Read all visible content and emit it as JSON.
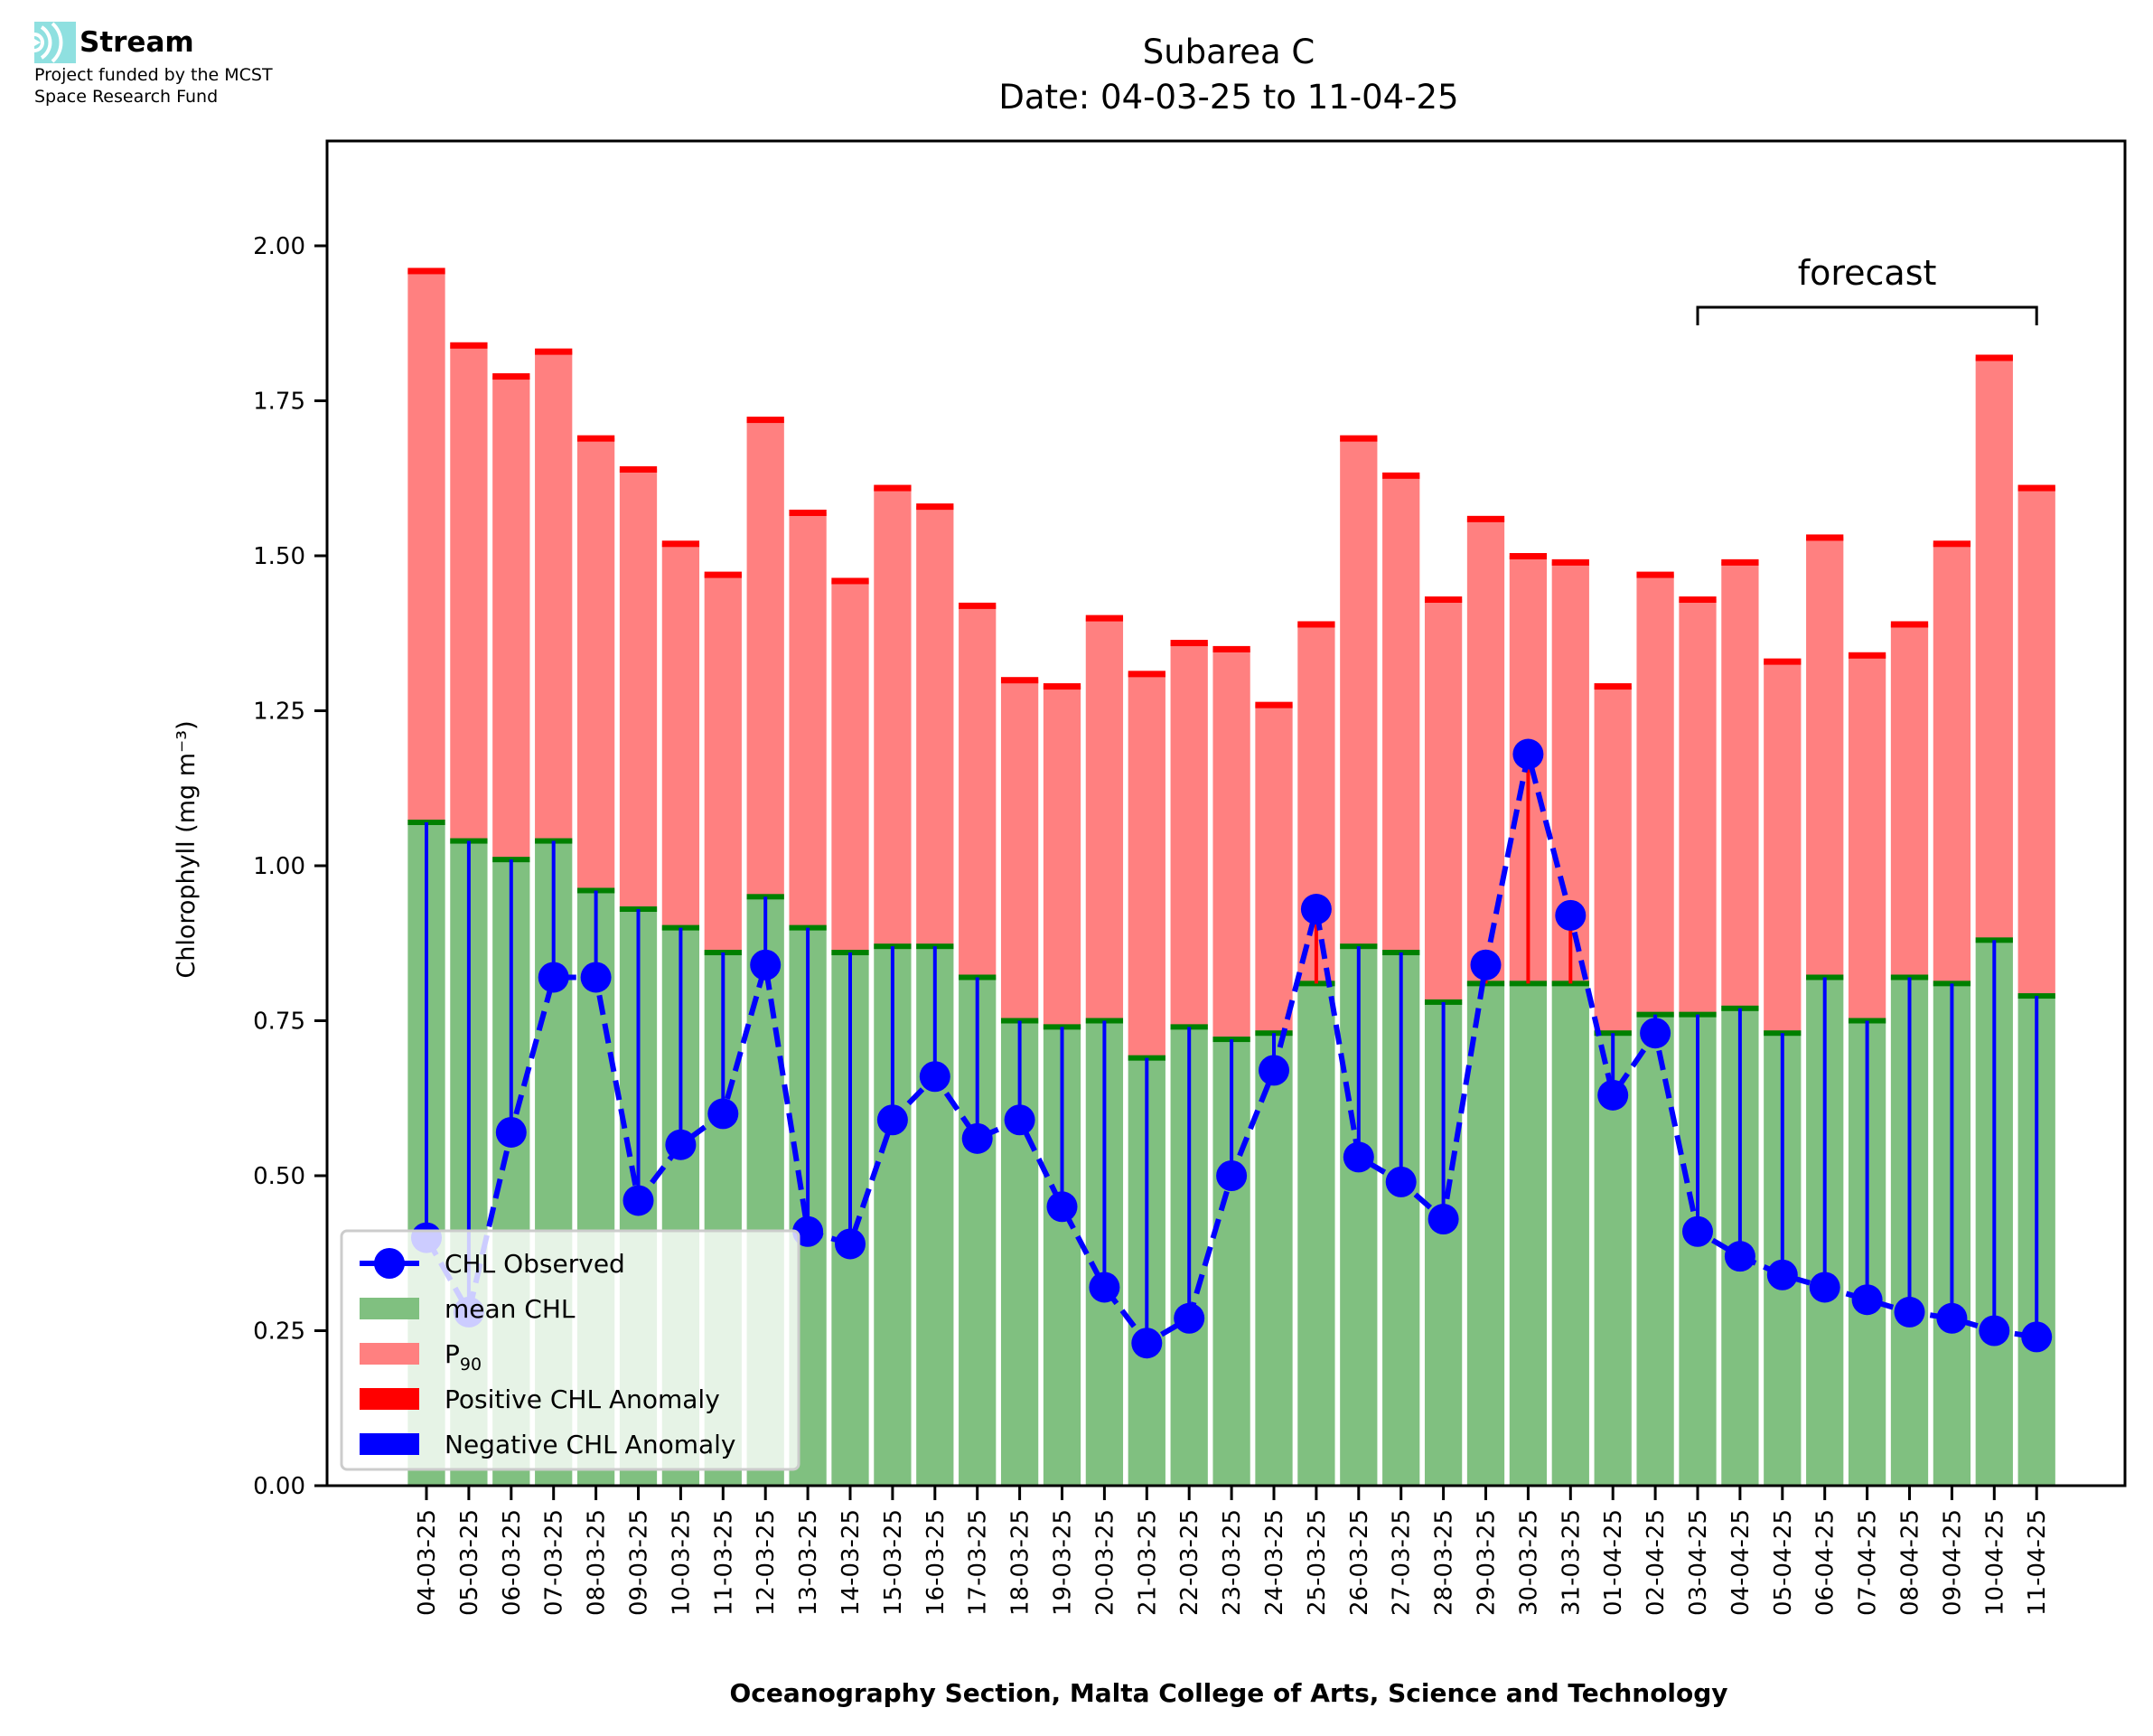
{
  "logo": {
    "name": "Stream",
    "fund_line1": "Project funded by the MCST",
    "fund_line2": "Space Research Fund",
    "accent": "#7fdcdc"
  },
  "chart_data": {
    "type": "bar",
    "title": "Subarea C",
    "subtitle": "Date: 04-03-25 to 11-04-25",
    "xlabel": "Oceanography Section, Malta College of Arts, Science and Technology",
    "ylabel": "Chlorophyll (mg m⁻³)",
    "ylim": [
      0,
      2.15
    ],
    "yticks": [
      "0.00",
      "0.25",
      "0.50",
      "0.75",
      "1.00",
      "1.25",
      "1.50",
      "1.75",
      "2.00"
    ],
    "grid": false,
    "legend_position": "lower-left",
    "annotation": {
      "text": "forecast",
      "from": "03-04-25",
      "to": "11-04-25"
    },
    "categories": [
      "04-03-25",
      "05-03-25",
      "06-03-25",
      "07-03-25",
      "08-03-25",
      "09-03-25",
      "10-03-25",
      "11-03-25",
      "12-03-25",
      "13-03-25",
      "14-03-25",
      "15-03-25",
      "16-03-25",
      "17-03-25",
      "18-03-25",
      "19-03-25",
      "20-03-25",
      "21-03-25",
      "22-03-25",
      "23-03-25",
      "24-03-25",
      "25-03-25",
      "26-03-25",
      "27-03-25",
      "28-03-25",
      "29-03-25",
      "30-03-25",
      "31-03-25",
      "01-04-25",
      "02-04-25",
      "03-04-25",
      "04-04-25",
      "05-04-25",
      "06-04-25",
      "07-04-25",
      "08-04-25",
      "09-04-25",
      "10-04-25",
      "11-04-25"
    ],
    "series": [
      {
        "name": "mean CHL",
        "kind": "bar",
        "color": "#80c080",
        "values": [
          1.07,
          1.04,
          1.01,
          1.04,
          0.96,
          0.93,
          0.9,
          0.86,
          0.95,
          0.9,
          0.86,
          0.87,
          0.87,
          0.82,
          0.75,
          0.74,
          0.75,
          0.69,
          0.74,
          0.72,
          0.73,
          0.81,
          0.87,
          0.86,
          0.78,
          0.81,
          0.81,
          0.81,
          0.73,
          0.76,
          0.76,
          0.77,
          0.73,
          0.82,
          0.75,
          0.82,
          0.81,
          0.88,
          0.79
        ]
      },
      {
        "name": "P90",
        "kind": "bar",
        "color": "#ff8080",
        "values": [
          1.96,
          1.84,
          1.79,
          1.83,
          1.69,
          1.64,
          1.52,
          1.47,
          1.72,
          1.57,
          1.46,
          1.61,
          1.58,
          1.42,
          1.3,
          1.29,
          1.4,
          1.31,
          1.36,
          1.35,
          1.26,
          1.39,
          1.69,
          1.63,
          1.43,
          1.56,
          1.5,
          1.49,
          1.29,
          1.47,
          1.43,
          1.49,
          1.33,
          1.53,
          1.34,
          1.39,
          1.52,
          1.82,
          1.61
        ]
      },
      {
        "name": "CHL Observed",
        "kind": "line",
        "color": "#0000ff",
        "values": [
          0.4,
          0.28,
          0.57,
          0.82,
          0.82,
          0.46,
          0.55,
          0.6,
          0.84,
          0.41,
          0.39,
          0.59,
          0.66,
          0.56,
          0.59,
          0.45,
          0.32,
          0.23,
          0.27,
          0.5,
          0.67,
          0.93,
          0.53,
          0.49,
          0.43,
          0.84,
          1.18,
          0.92,
          0.63,
          0.73,
          0.41,
          0.37,
          0.34,
          0.32,
          0.3,
          0.28,
          0.27,
          0.25,
          0.24
        ]
      }
    ],
    "legend": [
      {
        "label": "CHL Observed",
        "kind": "line-marker",
        "color": "#0000ff"
      },
      {
        "label": "mean CHL",
        "kind": "patch",
        "color": "#80c080"
      },
      {
        "label": "P",
        "sub": "90",
        "kind": "patch",
        "color": "#ff8080"
      },
      {
        "label": "Positive CHL Anomaly",
        "kind": "patch",
        "color": "#ff0000"
      },
      {
        "label": "Negative CHL Anomaly",
        "kind": "patch",
        "color": "#0000ff"
      }
    ],
    "colors": {
      "p90_cap": "#ff0000",
      "mean_cap": "#008000",
      "pos_anomaly": "#ff0000",
      "neg_anomaly": "#0000ff"
    }
  }
}
